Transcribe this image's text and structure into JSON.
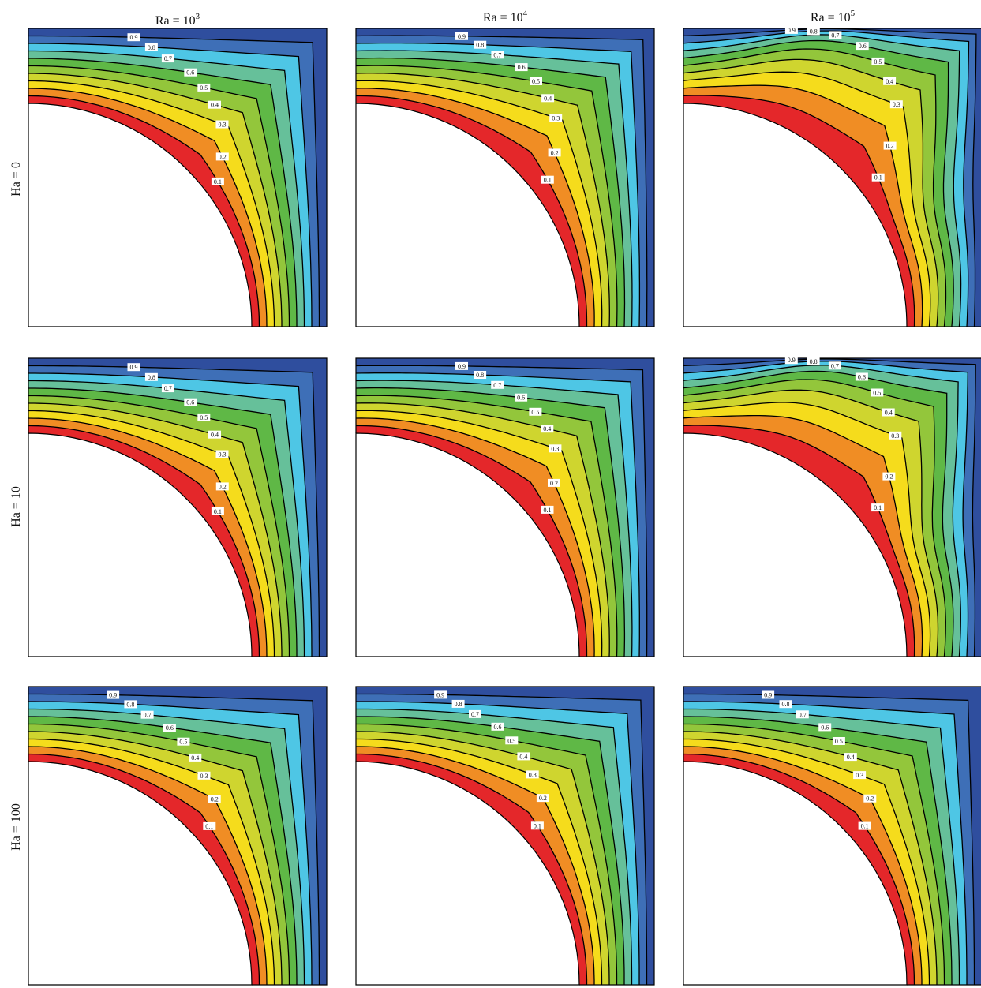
{
  "figure": {
    "column_headers": [
      {
        "base": "Ra = 10",
        "exp": "3"
      },
      {
        "base": "Ra = 10",
        "exp": "4"
      },
      {
        "base": "Ra = 10",
        "exp": "5"
      }
    ],
    "row_headers": [
      "Ha = 0",
      "Ha = 10",
      "Ha = 100"
    ],
    "contour_levels": [
      "0.1",
      "0.2",
      "0.3",
      "0.4",
      "0.5",
      "0.6",
      "0.7",
      "0.8",
      "0.9"
    ],
    "band_colors": [
      "#2f4e9e",
      "#3e6fb7",
      "#4ec6e5",
      "#66c09a",
      "#5fb846",
      "#93c63b",
      "#cfd52f",
      "#f5dc1c",
      "#f08d24",
      "#e4272a"
    ],
    "panels": [
      {
        "row": 0,
        "col": 0,
        "labels": [
          "0.9",
          "0.8",
          "0.7",
          "0.6",
          "0.5",
          "0.4",
          "0.3",
          "0.2",
          "0.1"
        ]
      },
      {
        "row": 0,
        "col": 1,
        "labels": [
          "0.9",
          "0.8",
          "0.7",
          "0.6",
          "0.5",
          "0.4",
          "0.3",
          "0.2",
          "0.1"
        ]
      },
      {
        "row": 0,
        "col": 2,
        "labels": [
          "0.9",
          "0.8",
          "0.7",
          "0.6",
          "0.5",
          "0.4",
          "0.3",
          "0.2",
          "0.1"
        ]
      },
      {
        "row": 1,
        "col": 0,
        "labels": [
          "0.9",
          "0.8",
          "0.7",
          "0.6",
          "0.5",
          "0.4",
          "0.3",
          "0.2",
          "0.1"
        ]
      },
      {
        "row": 1,
        "col": 1,
        "labels": [
          "0.9",
          "0.8",
          "0.7",
          "0.6",
          "0.5",
          "0.4",
          "0.3",
          "0.2",
          "0.1"
        ]
      },
      {
        "row": 1,
        "col": 2,
        "labels": [
          "0.9",
          "0.8",
          "0.7",
          "0.6",
          "0.5",
          "0.4",
          "0.3",
          "0.2",
          "0.1"
        ]
      },
      {
        "row": 2,
        "col": 0,
        "labels": [
          "0.9",
          "0.8",
          "0.7",
          "0.6",
          "0.5",
          "0.4",
          "0.3",
          "0.2",
          "0.1"
        ]
      },
      {
        "row": 2,
        "col": 1,
        "labels": [
          "0.9",
          "0.8",
          "0.7",
          "0.6",
          "0.5",
          "0.4",
          "0.3",
          "0.2",
          "0.1"
        ]
      },
      {
        "row": 2,
        "col": 2,
        "labels": [
          "0.9",
          "0.8",
          "0.7",
          "0.6",
          "0.5",
          "0.4",
          "0.3",
          "0.2",
          "0.1"
        ]
      }
    ]
  }
}
